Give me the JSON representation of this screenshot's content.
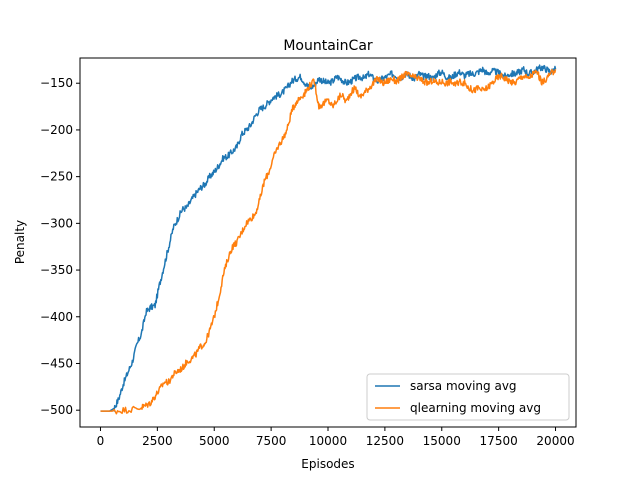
{
  "chart_data": {
    "type": "line",
    "title": "MountainCar",
    "xlabel": "Episodes",
    "ylabel": "Penalty",
    "xlim": [
      -900,
      20900
    ],
    "ylim": [
      -518,
      -123
    ],
    "xticks": [
      0,
      2500,
      5000,
      7500,
      10000,
      12500,
      15000,
      17500,
      20000
    ],
    "yticks": [
      -500,
      -450,
      -400,
      -350,
      -300,
      -250,
      -200,
      -150
    ],
    "grid": false,
    "legend_position": "lower-right",
    "series": [
      {
        "name": "sarsa moving avg",
        "color": "#1f77b4",
        "points": [
          [
            0,
            -501
          ],
          [
            400,
            -501
          ],
          [
            600,
            -498
          ],
          [
            800,
            -488
          ],
          [
            1000,
            -472
          ],
          [
            1200,
            -460
          ],
          [
            1400,
            -448
          ],
          [
            1600,
            -430
          ],
          [
            1800,
            -418
          ],
          [
            2000,
            -395
          ],
          [
            2200,
            -390
          ],
          [
            2400,
            -388
          ],
          [
            2600,
            -365
          ],
          [
            2800,
            -345
          ],
          [
            3000,
            -325
          ],
          [
            3200,
            -305
          ],
          [
            3400,
            -295
          ],
          [
            3600,
            -285
          ],
          [
            3800,
            -283
          ],
          [
            4000,
            -275
          ],
          [
            4200,
            -268
          ],
          [
            4400,
            -262
          ],
          [
            4600,
            -258
          ],
          [
            4800,
            -250
          ],
          [
            5000,
            -245
          ],
          [
            5200,
            -238
          ],
          [
            5400,
            -230
          ],
          [
            5600,
            -228
          ],
          [
            5800,
            -223
          ],
          [
            6000,
            -218
          ],
          [
            6200,
            -205
          ],
          [
            6400,
            -200
          ],
          [
            6600,
            -195
          ],
          [
            6800,
            -185
          ],
          [
            7000,
            -178
          ],
          [
            7200,
            -175
          ],
          [
            7400,
            -170
          ],
          [
            7600,
            -165
          ],
          [
            7800,
            -163
          ],
          [
            8000,
            -160
          ],
          [
            8200,
            -155
          ],
          [
            8400,
            -148
          ],
          [
            8600,
            -145
          ],
          [
            8800,
            -143
          ],
          [
            9000,
            -150
          ],
          [
            9200,
            -155
          ],
          [
            9400,
            -152
          ],
          [
            9600,
            -145
          ],
          [
            9800,
            -148
          ],
          [
            10000,
            -150
          ],
          [
            10200,
            -148
          ],
          [
            10400,
            -143
          ],
          [
            10600,
            -146
          ],
          [
            10800,
            -150
          ],
          [
            11000,
            -148
          ],
          [
            11200,
            -145
          ],
          [
            11400,
            -143
          ],
          [
            11600,
            -145
          ],
          [
            11800,
            -140
          ],
          [
            12000,
            -145
          ],
          [
            12200,
            -148
          ],
          [
            12400,
            -145
          ],
          [
            12600,
            -143
          ],
          [
            12800,
            -140
          ],
          [
            13000,
            -142
          ],
          [
            13200,
            -144
          ],
          [
            13400,
            -140
          ],
          [
            13600,
            -142
          ],
          [
            13800,
            -145
          ],
          [
            14000,
            -140
          ],
          [
            14200,
            -143
          ],
          [
            14400,
            -142
          ],
          [
            14600,
            -145
          ],
          [
            14800,
            -140
          ],
          [
            15000,
            -138
          ],
          [
            15200,
            -143
          ],
          [
            15400,
            -145
          ],
          [
            15600,
            -140
          ],
          [
            15800,
            -138
          ],
          [
            16000,
            -142
          ],
          [
            16200,
            -140
          ],
          [
            16400,
            -140
          ],
          [
            16600,
            -138
          ],
          [
            16800,
            -135
          ],
          [
            17000,
            -140
          ],
          [
            17200,
            -137
          ],
          [
            17400,
            -138
          ],
          [
            17600,
            -140
          ],
          [
            17800,
            -143
          ],
          [
            18000,
            -140
          ],
          [
            18200,
            -140
          ],
          [
            18400,
            -138
          ],
          [
            18600,
            -135
          ],
          [
            18800,
            -140
          ],
          [
            19000,
            -138
          ],
          [
            19200,
            -135
          ],
          [
            19400,
            -133
          ],
          [
            19600,
            -135
          ],
          [
            19800,
            -138
          ],
          [
            20000,
            -135
          ]
        ]
      },
      {
        "name": "qlearning moving avg",
        "color": "#ff7f0e",
        "points": [
          [
            0,
            -501
          ],
          [
            600,
            -501
          ],
          [
            1000,
            -500
          ],
          [
            1400,
            -499
          ],
          [
            1800,
            -497
          ],
          [
            2000,
            -495
          ],
          [
            2200,
            -492
          ],
          [
            2400,
            -485
          ],
          [
            2600,
            -478
          ],
          [
            2800,
            -470
          ],
          [
            3000,
            -470
          ],
          [
            3200,
            -462
          ],
          [
            3400,
            -458
          ],
          [
            3600,
            -455
          ],
          [
            3800,
            -448
          ],
          [
            4000,
            -445
          ],
          [
            4200,
            -440
          ],
          [
            4400,
            -432
          ],
          [
            4600,
            -428
          ],
          [
            4800,
            -415
          ],
          [
            5000,
            -400
          ],
          [
            5200,
            -380
          ],
          [
            5400,
            -355
          ],
          [
            5600,
            -338
          ],
          [
            5800,
            -325
          ],
          [
            6000,
            -320
          ],
          [
            6200,
            -310
          ],
          [
            6400,
            -300
          ],
          [
            6600,
            -295
          ],
          [
            6800,
            -290
          ],
          [
            7000,
            -275
          ],
          [
            7200,
            -255
          ],
          [
            7400,
            -245
          ],
          [
            7600,
            -230
          ],
          [
            7800,
            -218
          ],
          [
            8000,
            -210
          ],
          [
            8200,
            -200
          ],
          [
            8400,
            -180
          ],
          [
            8600,
            -170
          ],
          [
            8800,
            -165
          ],
          [
            9000,
            -160
          ],
          [
            9200,
            -152
          ],
          [
            9400,
            -148
          ],
          [
            9600,
            -175
          ],
          [
            9800,
            -172
          ],
          [
            10000,
            -168
          ],
          [
            10200,
            -175
          ],
          [
            10400,
            -168
          ],
          [
            10600,
            -162
          ],
          [
            10800,
            -170
          ],
          [
            11000,
            -160
          ],
          [
            11200,
            -155
          ],
          [
            11400,
            -165
          ],
          [
            11600,
            -160
          ],
          [
            11800,
            -155
          ],
          [
            12000,
            -150
          ],
          [
            12200,
            -145
          ],
          [
            12400,
            -150
          ],
          [
            12600,
            -148
          ],
          [
            12800,
            -145
          ],
          [
            13000,
            -148
          ],
          [
            13200,
            -145
          ],
          [
            13400,
            -140
          ],
          [
            13600,
            -142
          ],
          [
            13800,
            -144
          ],
          [
            14000,
            -145
          ],
          [
            14200,
            -148
          ],
          [
            14400,
            -150
          ],
          [
            14600,
            -147
          ],
          [
            14800,
            -150
          ],
          [
            15000,
            -148
          ],
          [
            15200,
            -150
          ],
          [
            15400,
            -148
          ],
          [
            15600,
            -152
          ],
          [
            15800,
            -148
          ],
          [
            16000,
            -150
          ],
          [
            16200,
            -155
          ],
          [
            16400,
            -158
          ],
          [
            16600,
            -155
          ],
          [
            16800,
            -158
          ],
          [
            17000,
            -155
          ],
          [
            17200,
            -150
          ],
          [
            17400,
            -145
          ],
          [
            17600,
            -142
          ],
          [
            17800,
            -145
          ],
          [
            18000,
            -148
          ],
          [
            18200,
            -150
          ],
          [
            18400,
            -145
          ],
          [
            18600,
            -142
          ],
          [
            18800,
            -145
          ],
          [
            19000,
            -140
          ],
          [
            19200,
            -138
          ],
          [
            19400,
            -150
          ],
          [
            19600,
            -145
          ],
          [
            19800,
            -140
          ],
          [
            20000,
            -135
          ]
        ]
      }
    ]
  }
}
